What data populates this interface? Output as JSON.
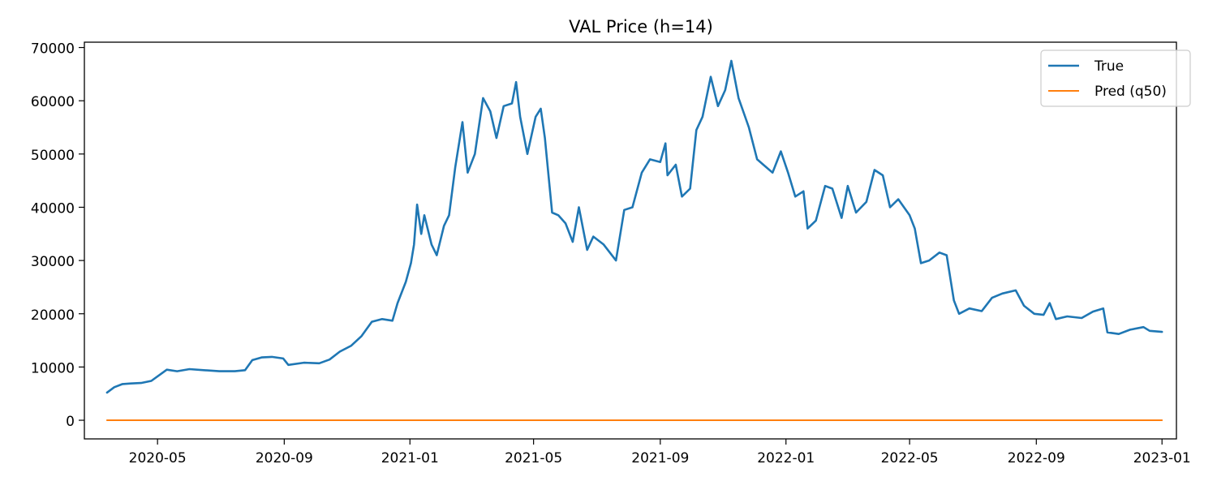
{
  "chart_data": {
    "type": "line",
    "title": "VAL Price (h=14)",
    "xlabel": "",
    "ylabel": "",
    "x_ticks": [
      "2020-05",
      "2020-09",
      "2021-01",
      "2021-05",
      "2021-09",
      "2022-01",
      "2022-05",
      "2022-09",
      "2023-01"
    ],
    "y_ticks": [
      0,
      10000,
      20000,
      30000,
      40000,
      50000,
      60000,
      70000
    ],
    "xlim": [
      "2020-02-20",
      "2023-01-15"
    ],
    "ylim": [
      -3500,
      71000
    ],
    "grid": false,
    "legend_position": "top-right",
    "series": [
      {
        "name": "True",
        "color": "#1f77b4",
        "points": [
          [
            "2020-03-13",
            5200
          ],
          [
            "2020-03-20",
            6200
          ],
          [
            "2020-03-28",
            6800
          ],
          [
            "2020-04-05",
            6900
          ],
          [
            "2020-04-15",
            7000
          ],
          [
            "2020-04-25",
            7400
          ],
          [
            "2020-05-05",
            8800
          ],
          [
            "2020-05-10",
            9500
          ],
          [
            "2020-05-20",
            9200
          ],
          [
            "2020-06-01",
            9600
          ],
          [
            "2020-06-15",
            9400
          ],
          [
            "2020-06-30",
            9200
          ],
          [
            "2020-07-15",
            9200
          ],
          [
            "2020-07-25",
            9400
          ],
          [
            "2020-08-01",
            11300
          ],
          [
            "2020-08-10",
            11800
          ],
          [
            "2020-08-20",
            11900
          ],
          [
            "2020-08-31",
            11600
          ],
          [
            "2020-09-05",
            10400
          ],
          [
            "2020-09-20",
            10800
          ],
          [
            "2020-10-05",
            10700
          ],
          [
            "2020-10-15",
            11400
          ],
          [
            "2020-10-25",
            12900
          ],
          [
            "2020-11-05",
            14000
          ],
          [
            "2020-11-15",
            15800
          ],
          [
            "2020-11-25",
            18500
          ],
          [
            "2020-12-05",
            19000
          ],
          [
            "2020-12-15",
            18700
          ],
          [
            "2020-12-20",
            22000
          ],
          [
            "2020-12-28",
            26000
          ],
          [
            "2021-01-02",
            29500
          ],
          [
            "2021-01-05",
            33000
          ],
          [
            "2021-01-08",
            40500
          ],
          [
            "2021-01-12",
            35000
          ],
          [
            "2021-01-15",
            38500
          ],
          [
            "2021-01-22",
            33000
          ],
          [
            "2021-01-27",
            31000
          ],
          [
            "2021-02-03",
            36500
          ],
          [
            "2021-02-08",
            38500
          ],
          [
            "2021-02-14",
            47500
          ],
          [
            "2021-02-21",
            56000
          ],
          [
            "2021-02-26",
            46500
          ],
          [
            "2021-03-05",
            50000
          ],
          [
            "2021-03-13",
            60500
          ],
          [
            "2021-03-20",
            58000
          ],
          [
            "2021-03-26",
            53000
          ],
          [
            "2021-04-02",
            59000
          ],
          [
            "2021-04-10",
            59500
          ],
          [
            "2021-04-14",
            63500
          ],
          [
            "2021-04-18",
            57000
          ],
          [
            "2021-04-25",
            50000
          ],
          [
            "2021-05-03",
            57000
          ],
          [
            "2021-05-08",
            58500
          ],
          [
            "2021-05-12",
            53000
          ],
          [
            "2021-05-19",
            39000
          ],
          [
            "2021-05-25",
            38500
          ],
          [
            "2021-06-01",
            37000
          ],
          [
            "2021-06-08",
            33500
          ],
          [
            "2021-06-14",
            40000
          ],
          [
            "2021-06-22",
            32000
          ],
          [
            "2021-06-28",
            34500
          ],
          [
            "2021-07-08",
            33000
          ],
          [
            "2021-07-20",
            30000
          ],
          [
            "2021-07-28",
            39500
          ],
          [
            "2021-08-05",
            40000
          ],
          [
            "2021-08-14",
            46500
          ],
          [
            "2021-08-22",
            49000
          ],
          [
            "2021-09-01",
            48500
          ],
          [
            "2021-09-06",
            52000
          ],
          [
            "2021-09-08",
            46000
          ],
          [
            "2021-09-16",
            48000
          ],
          [
            "2021-09-22",
            42000
          ],
          [
            "2021-09-30",
            43500
          ],
          [
            "2021-10-06",
            54500
          ],
          [
            "2021-10-12",
            57000
          ],
          [
            "2021-10-20",
            64500
          ],
          [
            "2021-10-27",
            59000
          ],
          [
            "2021-11-03",
            62000
          ],
          [
            "2021-11-09",
            67500
          ],
          [
            "2021-11-16",
            60500
          ],
          [
            "2021-11-26",
            55000
          ],
          [
            "2021-12-04",
            49000
          ],
          [
            "2021-12-10",
            48000
          ],
          [
            "2021-12-19",
            46500
          ],
          [
            "2021-12-27",
            50500
          ],
          [
            "2022-01-03",
            46500
          ],
          [
            "2022-01-10",
            42000
          ],
          [
            "2022-01-18",
            43000
          ],
          [
            "2022-01-22",
            36000
          ],
          [
            "2022-01-30",
            37500
          ],
          [
            "2022-02-08",
            44000
          ],
          [
            "2022-02-15",
            43500
          ],
          [
            "2022-02-24",
            38000
          ],
          [
            "2022-03-02",
            44000
          ],
          [
            "2022-03-10",
            39000
          ],
          [
            "2022-03-20",
            41000
          ],
          [
            "2022-03-28",
            47000
          ],
          [
            "2022-04-05",
            46000
          ],
          [
            "2022-04-12",
            40000
          ],
          [
            "2022-04-20",
            41500
          ],
          [
            "2022-05-01",
            38500
          ],
          [
            "2022-05-06",
            36000
          ],
          [
            "2022-05-12",
            29500
          ],
          [
            "2022-05-20",
            30000
          ],
          [
            "2022-05-30",
            31500
          ],
          [
            "2022-06-06",
            31000
          ],
          [
            "2022-06-13",
            22500
          ],
          [
            "2022-06-18",
            20000
          ],
          [
            "2022-06-28",
            21000
          ],
          [
            "2022-07-10",
            20500
          ],
          [
            "2022-07-20",
            23000
          ],
          [
            "2022-07-30",
            23800
          ],
          [
            "2022-08-12",
            24400
          ],
          [
            "2022-08-20",
            21500
          ],
          [
            "2022-08-30",
            20000
          ],
          [
            "2022-09-08",
            19800
          ],
          [
            "2022-09-14",
            22000
          ],
          [
            "2022-09-20",
            19000
          ],
          [
            "2022-10-01",
            19500
          ],
          [
            "2022-10-15",
            19200
          ],
          [
            "2022-10-26",
            20400
          ],
          [
            "2022-11-05",
            21000
          ],
          [
            "2022-11-09",
            16500
          ],
          [
            "2022-11-20",
            16200
          ],
          [
            "2022-12-01",
            17000
          ],
          [
            "2022-12-14",
            17500
          ],
          [
            "2022-12-20",
            16800
          ],
          [
            "2023-01-01",
            16600
          ]
        ]
      },
      {
        "name": "Pred (q50)",
        "color": "#ff7f0e",
        "points": [
          [
            "2020-03-13",
            0
          ],
          [
            "2023-01-01",
            0
          ]
        ]
      }
    ]
  }
}
